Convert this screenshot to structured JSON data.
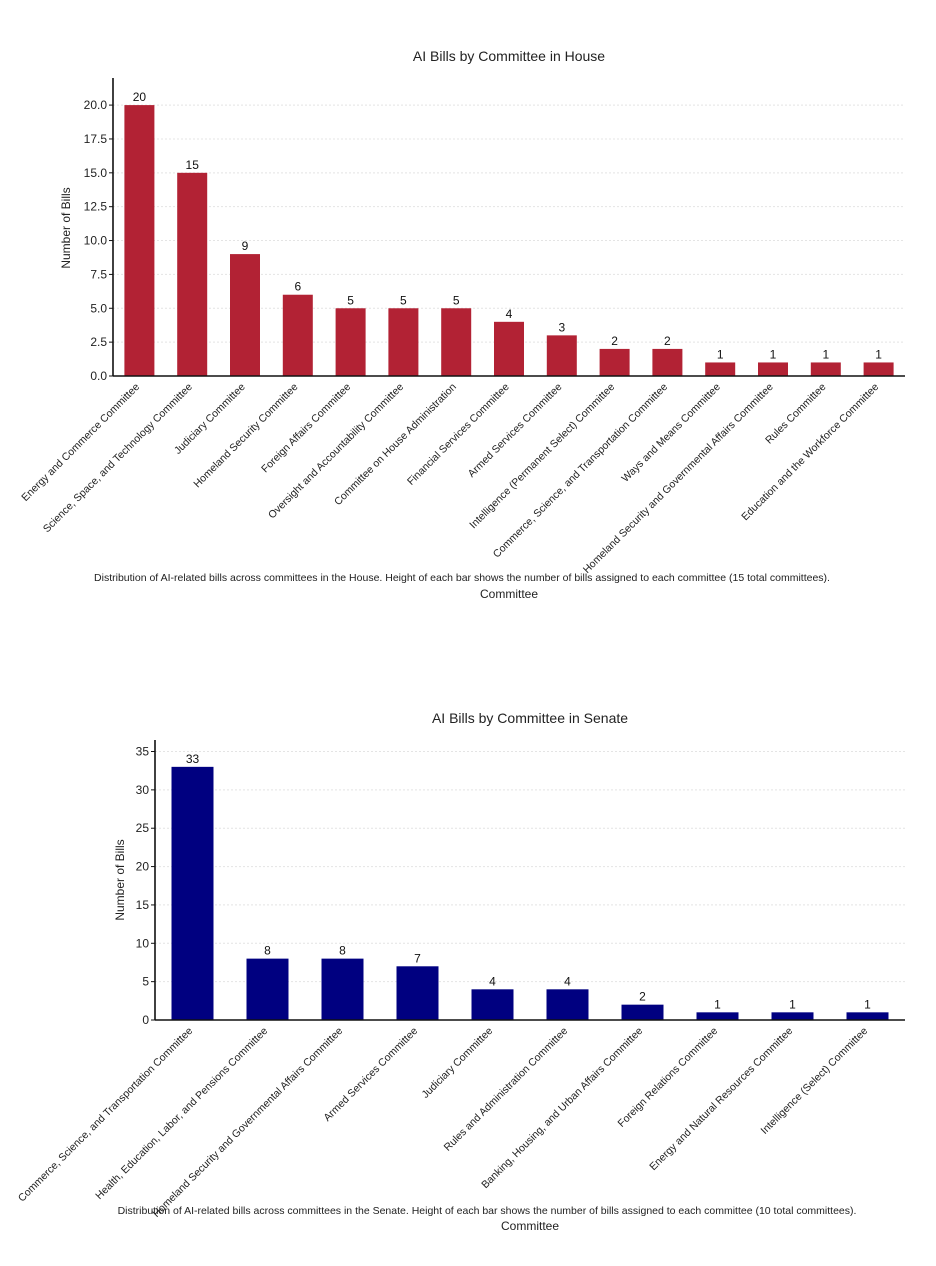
{
  "colors": {
    "house_bar": "#b22234",
    "senate_bar": "#000080"
  },
  "chart_data": [
    {
      "id": "house",
      "type": "bar",
      "title": "AI Bills by Committee in House",
      "xlabel": "Committee",
      "ylabel": "Number of Bills",
      "caption": "Distribution of AI-related bills across committees in the House. Height of each bar shows the number of bills assigned to each committee (15 total committees).",
      "categories": [
        "Energy and Commerce Committee",
        "Science, Space, and Technology Committee",
        "Judiciary Committee",
        "Homeland Security Committee",
        "Foreign Affairs Committee",
        "Oversight and Accountability Committee",
        "Committee on House Administration",
        "Financial Services Committee",
        "Armed Services Committee",
        "Intelligence (Permanent Select) Committee",
        "Commerce, Science, and Transportation Committee",
        "Ways and Means Committee",
        "Homeland Security and Governmental Affairs Committee",
        "Rules Committee",
        "Education and the Workforce Committee"
      ],
      "values": [
        20,
        15,
        9,
        6,
        5,
        5,
        5,
        4,
        3,
        2,
        2,
        1,
        1,
        1,
        1
      ],
      "yticks": [
        "0.0",
        "2.5",
        "5.0",
        "7.5",
        "10.0",
        "12.5",
        "15.0",
        "17.5",
        "20.0"
      ],
      "ylim": [
        0,
        22
      ],
      "grid": true
    },
    {
      "id": "senate",
      "type": "bar",
      "title": "AI Bills by Committee in Senate",
      "xlabel": "Committee",
      "ylabel": "Number of Bills",
      "caption": "Distribution of AI-related bills across committees in the Senate. Height of each bar shows the number of bills assigned to each committee (10 total committees).",
      "categories": [
        "Commerce, Science, and Transportation Committee",
        "Health, Education, Labor, and Pensions Committee",
        "Homeland Security and Governmental Affairs Committee",
        "Armed Services Committee",
        "Judiciary Committee",
        "Rules and Administration Committee",
        "Banking, Housing, and Urban Affairs Committee",
        "Foreign Relations Committee",
        "Energy and Natural Resources Committee",
        "Intelligence (Select) Committee"
      ],
      "values": [
        33,
        8,
        8,
        7,
        4,
        4,
        2,
        1,
        1,
        1
      ],
      "yticks": [
        "0",
        "5",
        "10",
        "15",
        "20",
        "25",
        "30",
        "35"
      ],
      "ylim": [
        0,
        36.5
      ],
      "grid": true
    }
  ]
}
